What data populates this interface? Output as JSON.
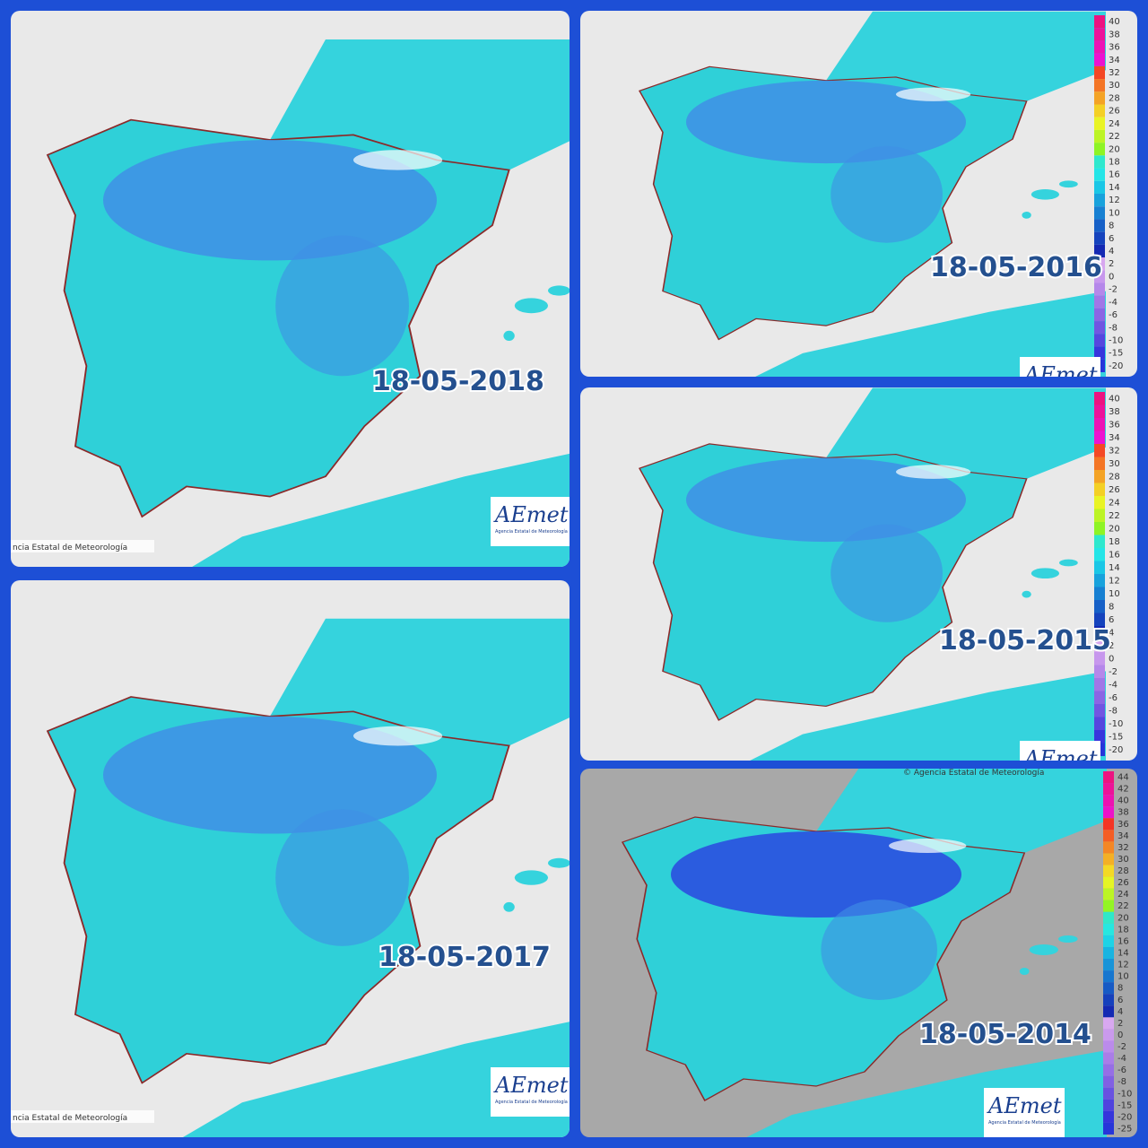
{
  "panels": [
    {
      "date": "18-05-2018",
      "credit": "ncia Estatal de Meteorología",
      "logo": "AEmet",
      "logo_sub": "Agencia Estatal de Meteorología"
    },
    {
      "date": "18-05-2016",
      "logo": "AEmet",
      "legend": [
        40,
        38,
        36,
        34,
        32,
        30,
        28,
        26,
        24,
        22,
        20,
        18,
        16,
        14,
        12,
        10,
        8,
        6,
        4,
        2,
        0,
        -2,
        -4,
        -6,
        -8,
        -10,
        -15,
        -20
      ]
    },
    {
      "date": "18-05-2015",
      "logo": "AEmet",
      "legend": [
        40,
        38,
        36,
        34,
        32,
        30,
        28,
        26,
        24,
        22,
        20,
        18,
        16,
        14,
        12,
        10,
        8,
        6,
        4,
        2,
        0,
        -2,
        -4,
        -6,
        -8,
        -10,
        -15,
        -20
      ]
    },
    {
      "date": "18-05-2017",
      "credit": "ncia Estatal de Meteorología",
      "logo": "AEmet",
      "logo_sub": "Agencia Estatal de Meteorología"
    },
    {
      "date": "18-05-2014",
      "credit": "© Agencia Estatal de Meteorología",
      "logo": "AEmet",
      "logo_sub": "Agencia Estatal de Meteorología",
      "legend": [
        44,
        42,
        40,
        38,
        36,
        34,
        32,
        30,
        28,
        26,
        24,
        22,
        20,
        18,
        16,
        14,
        12,
        10,
        8,
        6,
        4,
        2,
        0,
        -2,
        -4,
        -6,
        -8,
        -10,
        -15,
        -20,
        -25
      ]
    }
  ]
}
